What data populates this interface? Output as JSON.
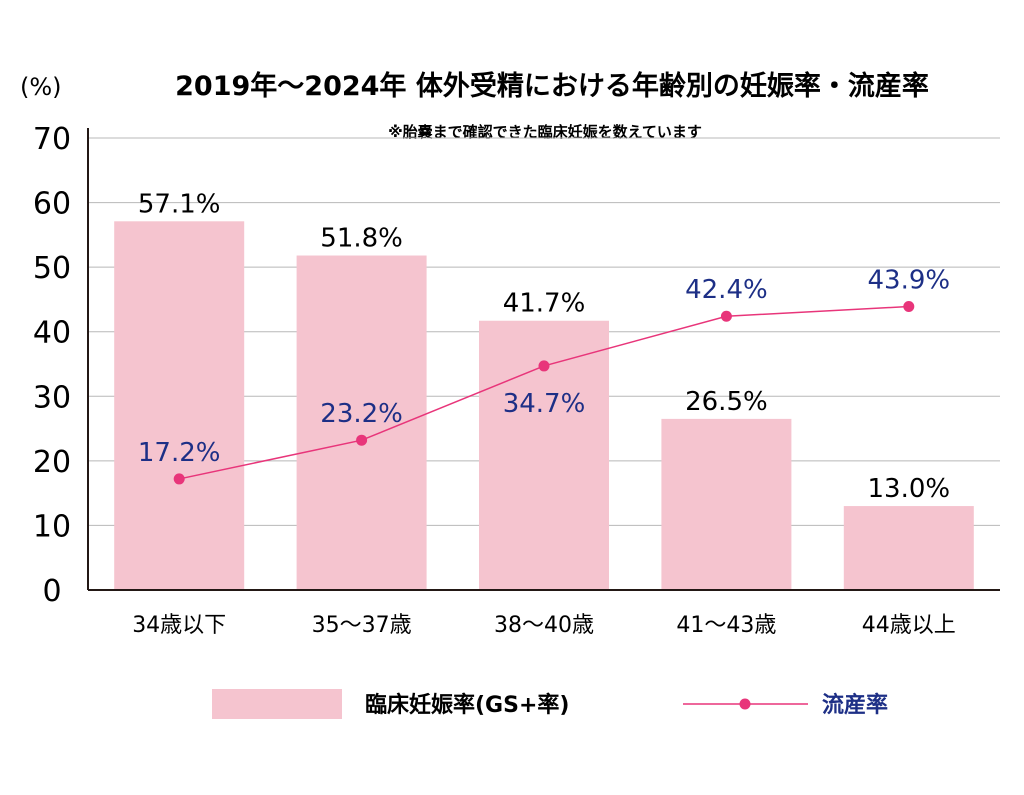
{
  "chart_data": {
    "type": "bar",
    "title": "2019年〜2024年 体外受精における年齢別の妊娠率・流産率",
    "subtitle": "※胎嚢まで確認できた臨床妊娠を数えています",
    "ylabel": "(%)",
    "ylim": [
      0,
      70
    ],
    "yticks": [
      "0",
      "10",
      "20",
      "30",
      "40",
      "50",
      "60",
      "70"
    ],
    "grid": true,
    "categories": [
      "34歳以下",
      "35〜37歳",
      "38〜40歳",
      "41〜43歳",
      "44歳以上"
    ],
    "series": [
      {
        "name": "臨床妊娠率(GS+率)",
        "type": "bar",
        "values": [
          57.1,
          51.8,
          41.7,
          26.5,
          13.0
        ],
        "labels": [
          "57.1%",
          "51.8%",
          "41.7%",
          "26.5%",
          "13.0%"
        ],
        "color": "#f5c4cf"
      },
      {
        "name": "流産率",
        "type": "line",
        "values": [
          17.2,
          23.2,
          34.7,
          42.4,
          43.9
        ],
        "labels": [
          "17.2%",
          "23.2%",
          "34.7%",
          "42.4%",
          "43.9%"
        ],
        "color": "#e8357a",
        "label_color": "#1d2f86"
      }
    ],
    "legend_position": "bottom"
  }
}
